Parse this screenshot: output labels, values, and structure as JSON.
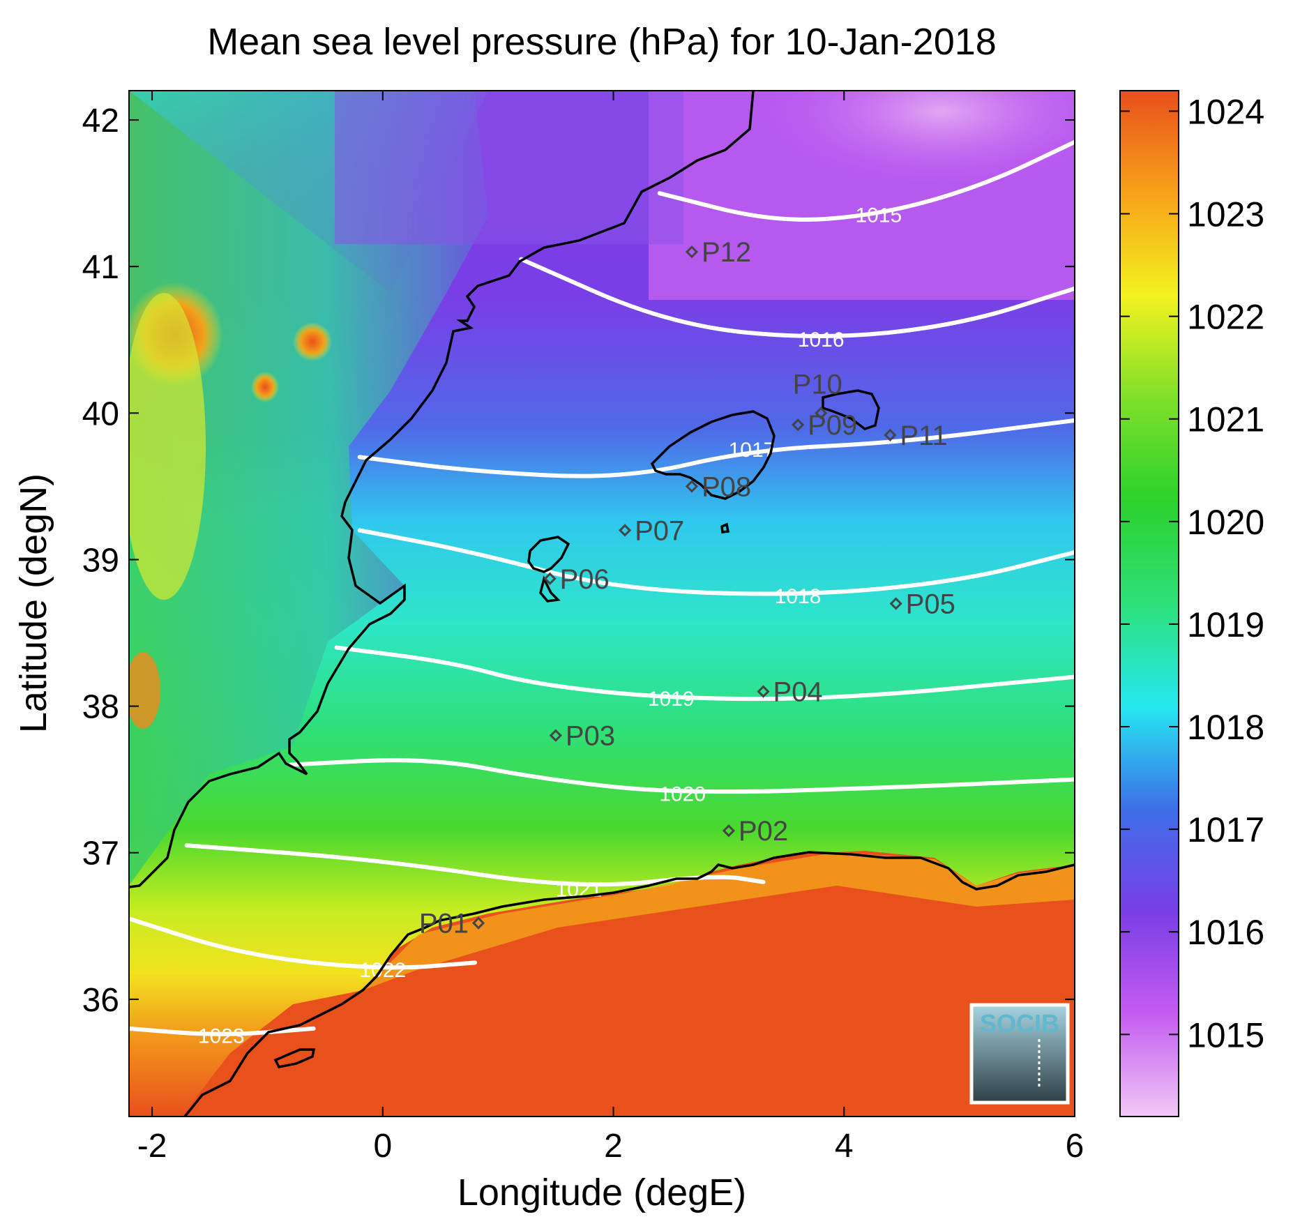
{
  "title": "Mean sea level pressure (hPa) for 10-Jan-2018",
  "xlabel": "Longitude (degE)",
  "ylabel": "Latitude (degN)",
  "x_ticks": [
    "-2",
    "0",
    "2",
    "4",
    "6"
  ],
  "y_ticks": [
    "36",
    "37",
    "38",
    "39",
    "40",
    "41",
    "42"
  ],
  "colorbar": {
    "ticks": [
      "1015",
      "1016",
      "1017",
      "1018",
      "1019",
      "1020",
      "1021",
      "1022",
      "1023",
      "1024"
    ],
    "range": [
      1014.2,
      1024.2
    ],
    "colors": [
      "#f0c8f5",
      "#c45cf0",
      "#7a3ee6",
      "#3e6fe8",
      "#25e8f0",
      "#2ee07a",
      "#2bd12b",
      "#7fe02a",
      "#f2f21f",
      "#f7a21a",
      "#e8501c"
    ]
  },
  "chart_data": {
    "type": "map",
    "xlim": [
      -2.2,
      6.0
    ],
    "ylim": [
      35.2,
      42.2
    ],
    "contours": [
      {
        "label": "1015",
        "points": [
          [
            2.4,
            41.5
          ],
          [
            3.4,
            41.3
          ],
          [
            4.3,
            41.35
          ],
          [
            5.2,
            41.55
          ],
          [
            6.0,
            41.85
          ]
        ]
      },
      {
        "label": "1016",
        "points": [
          [
            1.2,
            41.05
          ],
          [
            2.5,
            40.6
          ],
          [
            3.8,
            40.5
          ],
          [
            5.0,
            40.6
          ],
          [
            6.0,
            40.85
          ]
        ]
      },
      {
        "label": "1017",
        "points": [
          [
            -0.2,
            39.7
          ],
          [
            0.8,
            39.6
          ],
          [
            2.1,
            39.55
          ],
          [
            3.2,
            39.75
          ],
          [
            4.5,
            39.8
          ],
          [
            6.0,
            39.95
          ]
        ]
      },
      {
        "label": "1018",
        "points": [
          [
            -0.2,
            39.2
          ],
          [
            0.8,
            39.05
          ],
          [
            2.0,
            38.8
          ],
          [
            3.6,
            38.75
          ],
          [
            5.0,
            38.85
          ],
          [
            6.0,
            39.05
          ]
        ]
      },
      {
        "label": "1019",
        "points": [
          [
            -0.4,
            38.4
          ],
          [
            0.6,
            38.3
          ],
          [
            1.3,
            38.15
          ],
          [
            2.5,
            38.05
          ],
          [
            4.0,
            38.05
          ],
          [
            6.0,
            38.2
          ]
        ]
      },
      {
        "label": "1020",
        "points": [
          [
            -0.8,
            37.6
          ],
          [
            0.4,
            37.65
          ],
          [
            1.4,
            37.5
          ],
          [
            2.6,
            37.4
          ],
          [
            4.6,
            37.45
          ],
          [
            6.0,
            37.5
          ]
        ]
      },
      {
        "label": "1021",
        "points": [
          [
            -1.7,
            37.05
          ],
          [
            0.0,
            36.95
          ],
          [
            1.7,
            36.75
          ],
          [
            2.9,
            36.85
          ],
          [
            3.3,
            36.8
          ]
        ]
      },
      {
        "label": "1022",
        "points": [
          [
            -2.2,
            36.55
          ],
          [
            -1.2,
            36.3
          ],
          [
            0.0,
            36.2
          ],
          [
            0.8,
            36.25
          ]
        ]
      },
      {
        "label": "1023",
        "points": [
          [
            -2.2,
            35.8
          ],
          [
            -1.4,
            35.75
          ],
          [
            -0.6,
            35.8
          ]
        ]
      }
    ],
    "stations": [
      {
        "name": "P01",
        "lon": 0.83,
        "lat": 36.52
      },
      {
        "name": "P02",
        "lon": 3.0,
        "lat": 37.15
      },
      {
        "name": "P03",
        "lon": 1.5,
        "lat": 37.8
      },
      {
        "name": "P04",
        "lon": 3.3,
        "lat": 38.1
      },
      {
        "name": "P05",
        "lon": 4.45,
        "lat": 38.7
      },
      {
        "name": "P06",
        "lon": 1.45,
        "lat": 38.87
      },
      {
        "name": "P07",
        "lon": 2.1,
        "lat": 39.2
      },
      {
        "name": "P08",
        "lon": 2.68,
        "lat": 39.5
      },
      {
        "name": "P09",
        "lon": 3.6,
        "lat": 39.92
      },
      {
        "name": "P10",
        "lon": 3.8,
        "lat": 40.0
      },
      {
        "name": "P11",
        "lon": 4.4,
        "lat": 39.85
      },
      {
        "name": "P12",
        "lon": 2.68,
        "lat": 41.1
      }
    ]
  },
  "logo": {
    "text": "SOCIB"
  }
}
